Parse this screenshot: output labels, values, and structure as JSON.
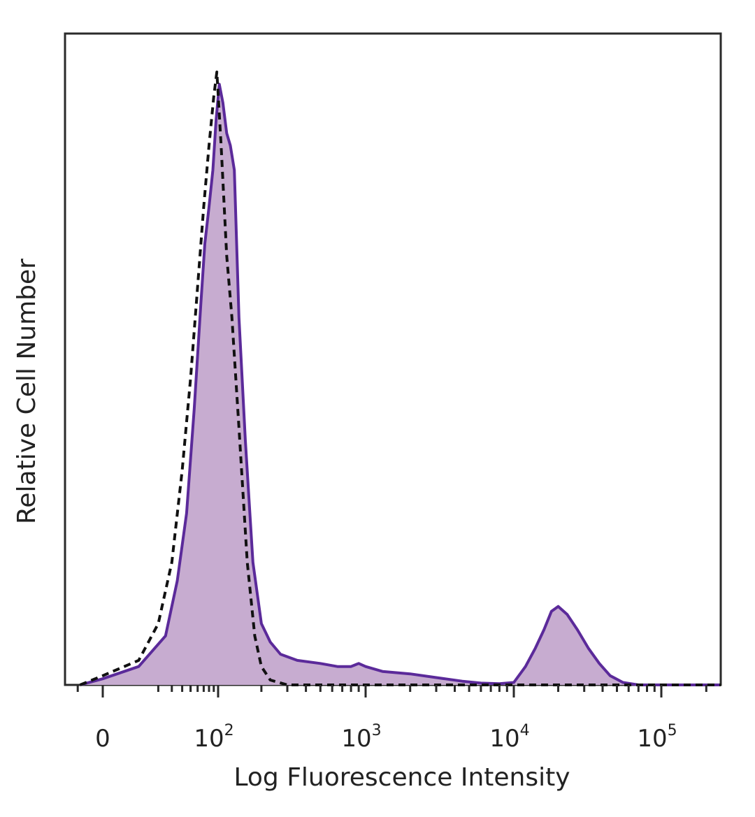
{
  "chart_data": {
    "type": "area",
    "title": "",
    "xlabel": "Log Fluorescence Intensity",
    "ylabel": "Relative Cell Number",
    "xscale": "biexponential (linear near 0, log above)",
    "xlim": [
      -100,
      250000
    ],
    "ylim": [
      0,
      1.0
    ],
    "grid": false,
    "legend": "none",
    "x_ticks": [
      {
        "value": 0,
        "base": "0",
        "exp": ""
      },
      {
        "value": 100,
        "base": "10",
        "exp": "2"
      },
      {
        "value": 1000,
        "base": "10",
        "exp": "3"
      },
      {
        "value": 10000,
        "base": "10",
        "exp": "4"
      },
      {
        "value": 100000,
        "base": "10",
        "exp": "5"
      }
    ],
    "series": [
      {
        "style": "filled, solid outline",
        "color": "#5b2a9a",
        "fill": "#c7acd0",
        "points": [
          [
            -40,
            0.0
          ],
          [
            0,
            0.01
          ],
          [
            10,
            0.03
          ],
          [
            25,
            0.08
          ],
          [
            35,
            0.17
          ],
          [
            45,
            0.28
          ],
          [
            55,
            0.45
          ],
          [
            65,
            0.62
          ],
          [
            72,
            0.72
          ],
          [
            80,
            0.78
          ],
          [
            88,
            0.84
          ],
          [
            95,
            0.92
          ],
          [
            102,
            0.98
          ],
          [
            108,
            0.95
          ],
          [
            115,
            0.9
          ],
          [
            122,
            0.88
          ],
          [
            130,
            0.84
          ],
          [
            140,
            0.6
          ],
          [
            155,
            0.4
          ],
          [
            175,
            0.2
          ],
          [
            200,
            0.1
          ],
          [
            230,
            0.07
          ],
          [
            270,
            0.05
          ],
          [
            350,
            0.04
          ],
          [
            500,
            0.035
          ],
          [
            650,
            0.03
          ],
          [
            800,
            0.03
          ],
          [
            900,
            0.035
          ],
          [
            1000,
            0.03
          ],
          [
            1300,
            0.022
          ],
          [
            2000,
            0.018
          ],
          [
            3000,
            0.012
          ],
          [
            4500,
            0.006
          ],
          [
            6000,
            0.003
          ],
          [
            8000,
            0.002
          ],
          [
            10000,
            0.004
          ],
          [
            12000,
            0.03
          ],
          [
            14000,
            0.06
          ],
          [
            16000,
            0.09
          ],
          [
            18000,
            0.12
          ],
          [
            20000,
            0.128
          ],
          [
            23000,
            0.115
          ],
          [
            27000,
            0.09
          ],
          [
            32000,
            0.06
          ],
          [
            38000,
            0.035
          ],
          [
            45000,
            0.015
          ],
          [
            55000,
            0.004
          ],
          [
            70000,
            0.0
          ],
          [
            250000,
            0.0
          ]
        ]
      },
      {
        "style": "dashed outline",
        "color": "#111111",
        "points": [
          [
            -40,
            0.0
          ],
          [
            0,
            0.015
          ],
          [
            10,
            0.04
          ],
          [
            20,
            0.1
          ],
          [
            30,
            0.2
          ],
          [
            40,
            0.35
          ],
          [
            50,
            0.5
          ],
          [
            60,
            0.65
          ],
          [
            70,
            0.78
          ],
          [
            80,
            0.88
          ],
          [
            90,
            0.96
          ],
          [
            97,
            1.0
          ],
          [
            105,
            0.88
          ],
          [
            115,
            0.7
          ],
          [
            125,
            0.6
          ],
          [
            140,
            0.42
          ],
          [
            160,
            0.2
          ],
          [
            180,
            0.08
          ],
          [
            200,
            0.03
          ],
          [
            230,
            0.008
          ],
          [
            300,
            0.0
          ],
          [
            250000,
            0.0
          ]
        ]
      }
    ]
  }
}
